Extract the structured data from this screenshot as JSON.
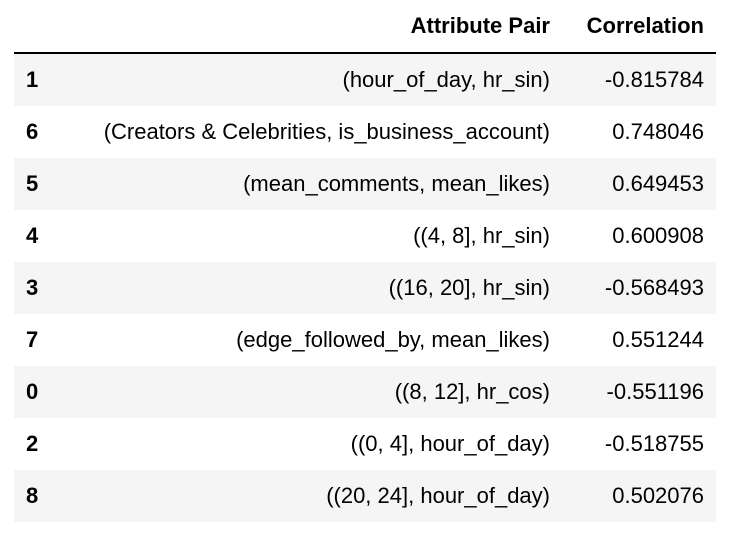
{
  "table": {
    "columns": {
      "index": "",
      "attribute_pair": "Attribute Pair",
      "correlation": "Correlation"
    },
    "rows": [
      {
        "index": "1",
        "pair": "(hour_of_day, hr_sin)",
        "corr": "-0.815784"
      },
      {
        "index": "6",
        "pair": "(Creators & Celebrities, is_business_account)",
        "corr": "0.748046"
      },
      {
        "index": "5",
        "pair": "(mean_comments, mean_likes)",
        "corr": "0.649453"
      },
      {
        "index": "4",
        "pair": "((4, 8], hr_sin)",
        "corr": "0.600908"
      },
      {
        "index": "3",
        "pair": "((16, 20], hr_sin)",
        "corr": "-0.568493"
      },
      {
        "index": "7",
        "pair": "(edge_followed_by, mean_likes)",
        "corr": "0.551244"
      },
      {
        "index": "0",
        "pair": "((8, 12], hr_cos)",
        "corr": "-0.551196"
      },
      {
        "index": "2",
        "pair": "((0, 4], hour_of_day)",
        "corr": "-0.518755"
      },
      {
        "index": "8",
        "pair": "((20, 24], hour_of_day)",
        "corr": "0.502076"
      }
    ]
  }
}
